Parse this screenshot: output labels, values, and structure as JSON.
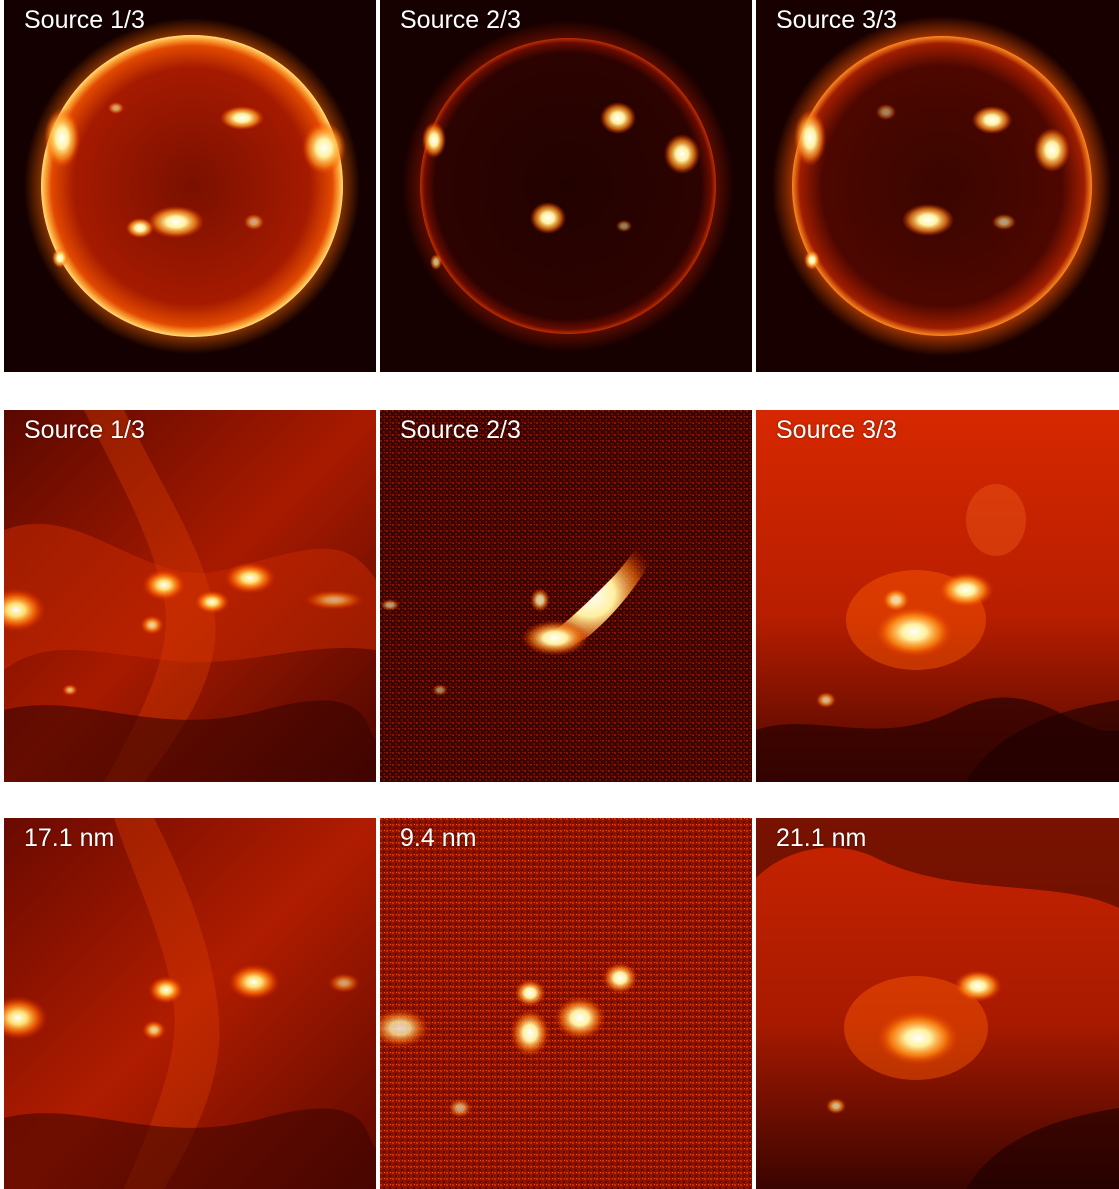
{
  "figure": {
    "rows": [
      {
        "name": "full-disk",
        "panels": [
          {
            "label": "Source 1/3"
          },
          {
            "label": "Source 2/3"
          },
          {
            "label": "Source 3/3"
          }
        ]
      },
      {
        "name": "zoomed-sources",
        "panels": [
          {
            "label": "Source 1/3"
          },
          {
            "label": "Source 2/3"
          },
          {
            "label": "Source 3/3"
          }
        ]
      },
      {
        "name": "zoomed-wavelengths",
        "panels": [
          {
            "label": "17.1 nm"
          },
          {
            "label": "9.4 nm"
          },
          {
            "label": "21.1 nm"
          }
        ]
      }
    ]
  },
  "colors": {
    "background": "#ffffff",
    "panel_dark": "#1a0000",
    "disk_red": "#9e1500",
    "limb_glow": "#ff8a1a",
    "hot_white": "#fff6c8",
    "label_text": "#ffffff"
  }
}
